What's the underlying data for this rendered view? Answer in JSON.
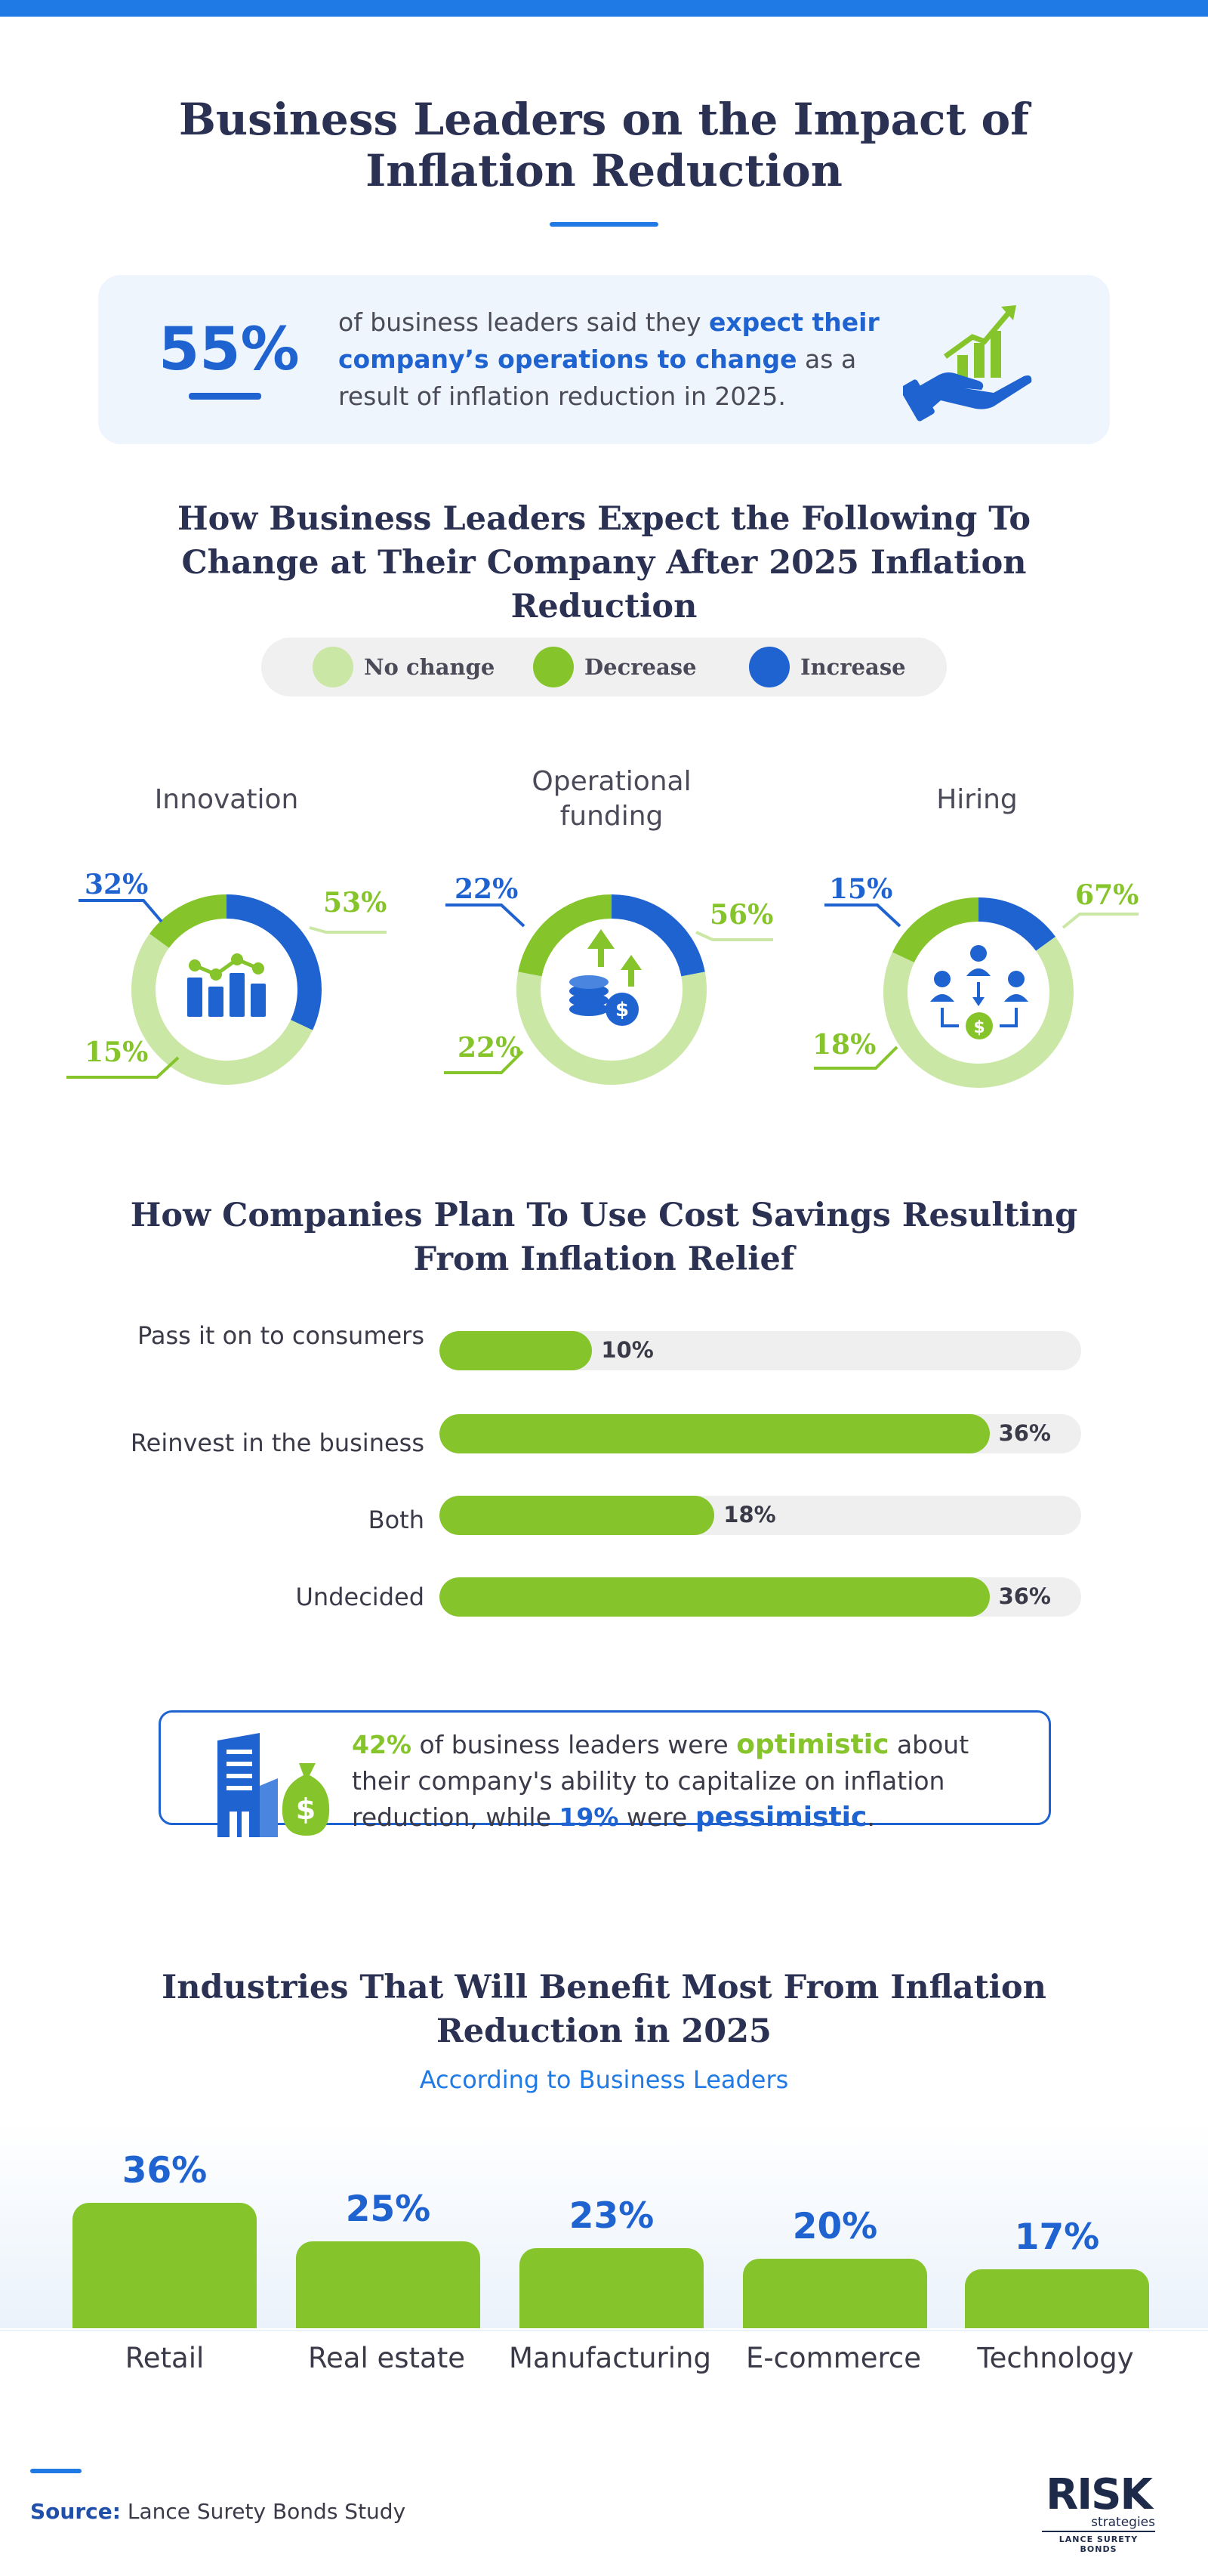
{
  "header": {
    "title": "Business Leaders on the Impact of Inflation Reduction"
  },
  "stat": {
    "percent": "55%",
    "text_before": "of business leaders said they ",
    "text_highlight": "expect their company’s operations to change",
    "text_after": " as a result of inflation reduction in 2025.",
    "icon": "growth-chart-hand-icon"
  },
  "donuts_section": {
    "title": "How Business Leaders Expect the Following To Change at Their Company After 2025 Inflation Reduction",
    "legend": [
      {
        "label": "No change",
        "color": "#cbe7a6"
      },
      {
        "label": "Decrease",
        "color": "#86c42b"
      },
      {
        "label": "Increase",
        "color": "#1f63d1"
      }
    ]
  },
  "chart_data": [
    {
      "type": "pie",
      "title": "Innovation",
      "slices": [
        {
          "label": "No change",
          "value": 53,
          "color": "#cbe7a6"
        },
        {
          "label": "Decrease",
          "value": 15,
          "color": "#86c42b"
        },
        {
          "label": "Increase",
          "value": 32,
          "color": "#1f63d1"
        }
      ],
      "value_labels": [
        "53%",
        "15%",
        "32%"
      ],
      "icon": "analytics-chart-icon"
    },
    {
      "type": "pie",
      "title": "Operational funding",
      "slices": [
        {
          "label": "No change",
          "value": 56,
          "color": "#cbe7a6"
        },
        {
          "label": "Decrease",
          "value": 22,
          "color": "#86c42b"
        },
        {
          "label": "Increase",
          "value": 22,
          "color": "#1f63d1"
        }
      ],
      "value_labels": [
        "56%",
        "22%",
        "22%"
      ],
      "icon": "money-growth-icon"
    },
    {
      "type": "pie",
      "title": "Hiring",
      "slices": [
        {
          "label": "No change",
          "value": 67,
          "color": "#cbe7a6"
        },
        {
          "label": "Decrease",
          "value": 18,
          "color": "#86c42b"
        },
        {
          "label": "Increase",
          "value": 15,
          "color": "#1f63d1"
        }
      ],
      "value_labels": [
        "67%",
        "18%",
        "15%"
      ],
      "icon": "team-payroll-icon"
    },
    {
      "type": "bar",
      "title": "How Companies Plan To Use Cost Savings Resulting From Inflation Relief",
      "categories": [
        "Pass it on to consumers",
        "Reinvest in the business",
        "Both",
        "Undecided"
      ],
      "values": [
        10,
        36,
        18,
        36
      ],
      "value_labels": [
        "10%",
        "36%",
        "18%",
        "36%"
      ],
      "xlim": [
        0,
        42
      ],
      "color": "#86c42b"
    },
    {
      "type": "bar",
      "title": "Industries That Will Benefit Most From Inflation Reduction in 2025",
      "subtitle": "According to Business Leaders",
      "categories": [
        "Retail",
        "Real estate",
        "Manufacturing",
        "E-commerce",
        "Technology"
      ],
      "values": [
        36,
        25,
        23,
        20,
        17
      ],
      "value_labels": [
        "36%",
        "25%",
        "23%",
        "20%",
        "17%"
      ],
      "color": "#86c42b"
    }
  ],
  "optimism": {
    "pct1": "42%",
    "t1": " of business leaders were ",
    "w1": "optimistic",
    "t2": " about their company's ability to capitalize on inflation reduction, while ",
    "pct2": "19%",
    "t3": " were ",
    "w2": "pessimistic",
    "t4": ".",
    "icon": "building-money-bag-icon"
  },
  "footer": {
    "source_label": "Source:",
    "source_text": " Lance Surety Bonds Study",
    "logo_main": "RISK",
    "logo_sub": "strategies",
    "logo_foot": "LANCE SURETY BONDS"
  }
}
